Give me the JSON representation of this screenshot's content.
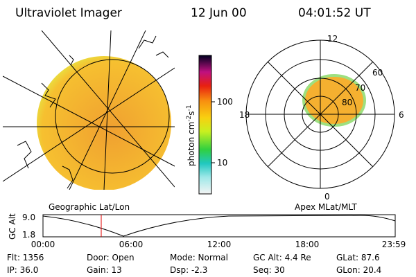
{
  "header": {
    "title": "Ultraviolet Imager",
    "date": "12 Jun 00",
    "time": "04:01:52 UT"
  },
  "colorbar": {
    "label": "photon cm",
    "exp1": "-2",
    "unit2": "s",
    "exp2": "-1",
    "ticks": [
      "100",
      "10"
    ]
  },
  "left_panel": {
    "caption": "Geographic Lat/Lon"
  },
  "polar": {
    "caption": "Apex MLat/MLT",
    "mlt": [
      "12",
      "18",
      "6",
      "0"
    ],
    "mlat": [
      "60",
      "70",
      "80"
    ]
  },
  "timeline": {
    "ylabel": "GC Alt",
    "yticks": [
      "9.0",
      "1.8"
    ],
    "xticks": [
      "00:00",
      "06:00",
      "12:00",
      "18:00",
      "23:59"
    ]
  },
  "info": {
    "rows": [
      [
        "Flt: 1356",
        "Door: Open",
        "Mode: Normal",
        "GC Alt: 4.4 Re",
        "GLat: 87.6"
      ],
      [
        "IP: 36.0",
        "Gain: 13",
        "Dsp:    -2.3",
        "Seq: 30",
        "GLon:  20.4"
      ]
    ]
  }
}
